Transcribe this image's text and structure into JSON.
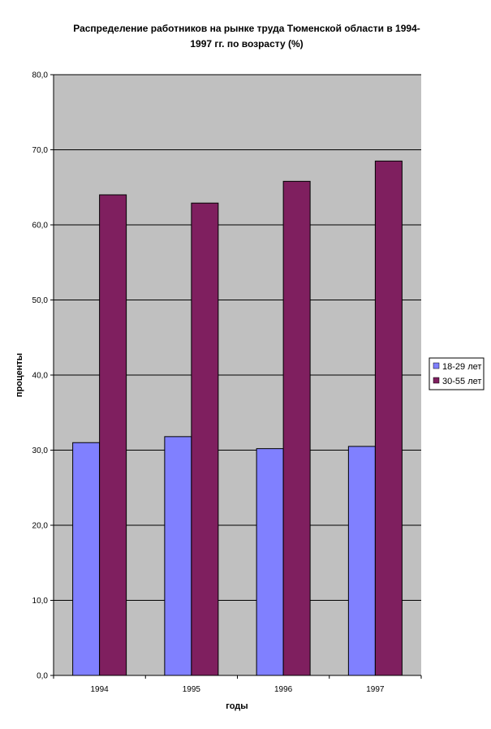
{
  "chart_data": {
    "type": "bar",
    "title_line1": "Распределение работников на рынке труда Тюменской области в 1994-",
    "title_line2": "1997 гг. по возрасту (%)",
    "xlabel": "годы",
    "ylabel": "проценты",
    "categories": [
      "1994",
      "1995",
      "1996",
      "1997"
    ],
    "series": [
      {
        "name": "18-29 лет",
        "color": "#8080ff",
        "values": [
          31.0,
          31.8,
          30.2,
          30.5
        ]
      },
      {
        "name": "30-55 лет",
        "color": "#7f1f5f",
        "values": [
          64.0,
          62.9,
          65.8,
          68.5
        ]
      }
    ],
    "ylim": [
      0,
      80
    ],
    "yticks": [
      "0,0",
      "10,0",
      "20,0",
      "30,0",
      "40,0",
      "50,0",
      "60,0",
      "70,0",
      "80,0"
    ],
    "grid": true,
    "plot_background": "#c0c0c0",
    "legend_position": "right"
  }
}
